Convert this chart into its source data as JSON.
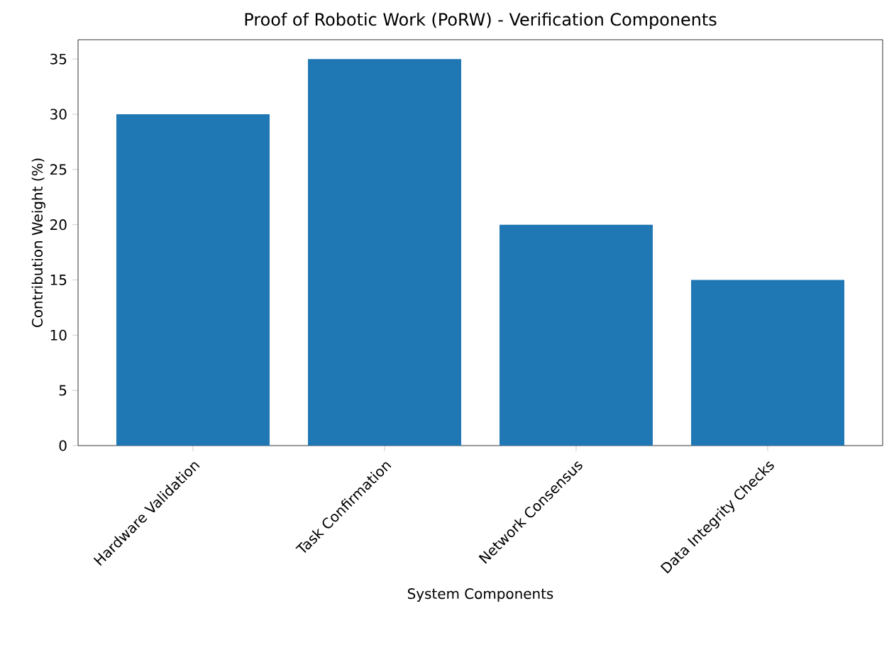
{
  "chart_data": {
    "type": "bar",
    "title": "Proof of Robotic Work (PoRW) - Verification Components",
    "xlabel": "System Components",
    "ylabel": "Contribution Weight (%)",
    "categories": [
      "Hardware Validation",
      "Task Confirmation",
      "Network Consensus",
      "Data Integrity Checks"
    ],
    "values": [
      30,
      35,
      20,
      15
    ],
    "color": "#1f77b4",
    "ylim": [
      0,
      36.75
    ],
    "yticks": [
      0,
      5,
      10,
      15,
      20,
      25,
      30,
      35
    ],
    "grid": false
  }
}
